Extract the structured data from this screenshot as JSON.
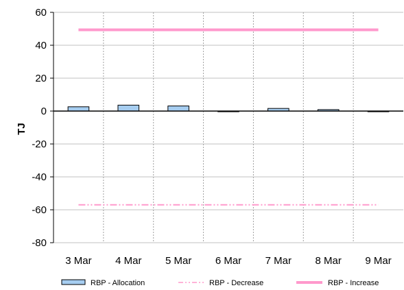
{
  "chart_data": {
    "type": "bar",
    "categories": [
      "3 Mar",
      "4 Mar",
      "5 Mar",
      "6 Mar",
      "7 Mar",
      "8 Mar",
      "9 Mar"
    ],
    "ylabel": "TJ",
    "xlabel": "",
    "title": "",
    "ylim": [
      -80,
      60
    ],
    "yticks": [
      -80,
      -60,
      -40,
      -20,
      0,
      20,
      40,
      60
    ],
    "grid": {
      "horizontal": true,
      "vertical": "dashed"
    },
    "legend_position": "bottom",
    "series": [
      {
        "name": "RBP - Allocation",
        "kind": "bar",
        "values": [
          2.6,
          3.6,
          3.1,
          -0.3,
          1.6,
          0.9,
          -0.3
        ],
        "fill": "#a6cdf0",
        "stroke": "#000000"
      },
      {
        "name": "RBP - Decrease",
        "kind": "line",
        "style": "dash-dot-dot",
        "values": [
          -57,
          -57,
          -57,
          -57,
          -57,
          -57,
          -57
        ],
        "color": "#ff99cc"
      },
      {
        "name": "RBP - Increase",
        "kind": "line",
        "style": "solid",
        "values": [
          49.4,
          49.4,
          49.4,
          49.4,
          49.4,
          49.4,
          49.4
        ],
        "color": "#ff99cc"
      }
    ]
  }
}
